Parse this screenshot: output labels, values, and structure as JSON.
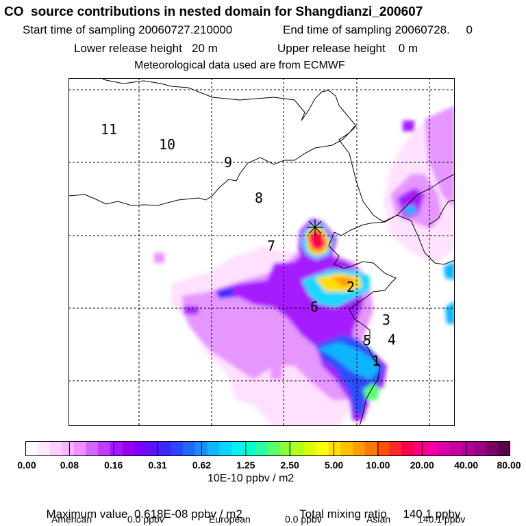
{
  "header": {
    "title": "CO  source contributions in nested domain for Shangdianzi_200607",
    "start_label": "Start time of sampling 20060727.210000",
    "end_label": "End time of sampling 20060728.     0",
    "lower_height": "Lower release height   20 m",
    "upper_height": "Upper release height    0 m",
    "met_data": "Meteorological data used are from ECMWF"
  },
  "colors": {
    "coastline": "#000000",
    "grid": "#000000",
    "station_marker": "#000000"
  },
  "chart_data": {
    "type": "heatmap",
    "title": "CO  source contributions in nested domain for Shangdianzi_200607",
    "grid": true,
    "colorbar": {
      "units": "10E-10 ppbv / m2",
      "tick_labels": [
        "0.00",
        "0.08",
        "0.16",
        "0.31",
        "0.62",
        "1.25",
        "2.50",
        "5.00",
        "10.00",
        "20.00",
        "40.00",
        "80.00"
      ],
      "colors": [
        "#ffffff",
        "#ffe9ff",
        "#ffd0ff",
        "#f7b6ff",
        "#ee90ff",
        "#d466ff",
        "#bf3cff",
        "#a516ff",
        "#9a00f0",
        "#7e00ff",
        "#5a14ff",
        "#3c28ff",
        "#2a46ff",
        "#1e6bff",
        "#1690ff",
        "#10b4ff",
        "#00d8ff",
        "#00f2f2",
        "#00ffd0",
        "#28ffa0",
        "#5aff6e",
        "#8aff3c",
        "#b4ff1e",
        "#d8ff00",
        "#ffff00",
        "#ffe000",
        "#ffc000",
        "#ff9e00",
        "#ff7800",
        "#ff5000",
        "#ff2828",
        "#ff0050",
        "#ff0080",
        "#f000a0",
        "#dc00aa",
        "#c800a0",
        "#b40096",
        "#9a0084",
        "#7a0068",
        "#5a004c"
      ]
    },
    "max_value": "0.618E-08 ppbv / m2",
    "total_mixing_ratio": "140.1 ppbv",
    "regions": [
      {
        "name": "American",
        "value": "0.0 ppbv"
      },
      {
        "name": "European",
        "value": "0.0 ppbv"
      },
      {
        "name": "Asian",
        "value": "140.1 ppbv"
      }
    ],
    "map_labels": [
      "11",
      "10",
      "9",
      "8",
      "7",
      "6",
      "5",
      "4",
      "3",
      "2",
      "1"
    ],
    "station": "Shangdianzi"
  },
  "footer": {
    "max_label": "Maximum value",
    "max_value": "0.618E-08 ppbv / m2",
    "total_label": "Total mixing ratio",
    "total_value": "140.1 ppbv",
    "american_label": "American",
    "american_value": "0.0 ppbv",
    "european_label": "European",
    "european_value": "0.0 ppbv",
    "asian_label": "Asian",
    "asian_value": "140.1 ppbv"
  }
}
